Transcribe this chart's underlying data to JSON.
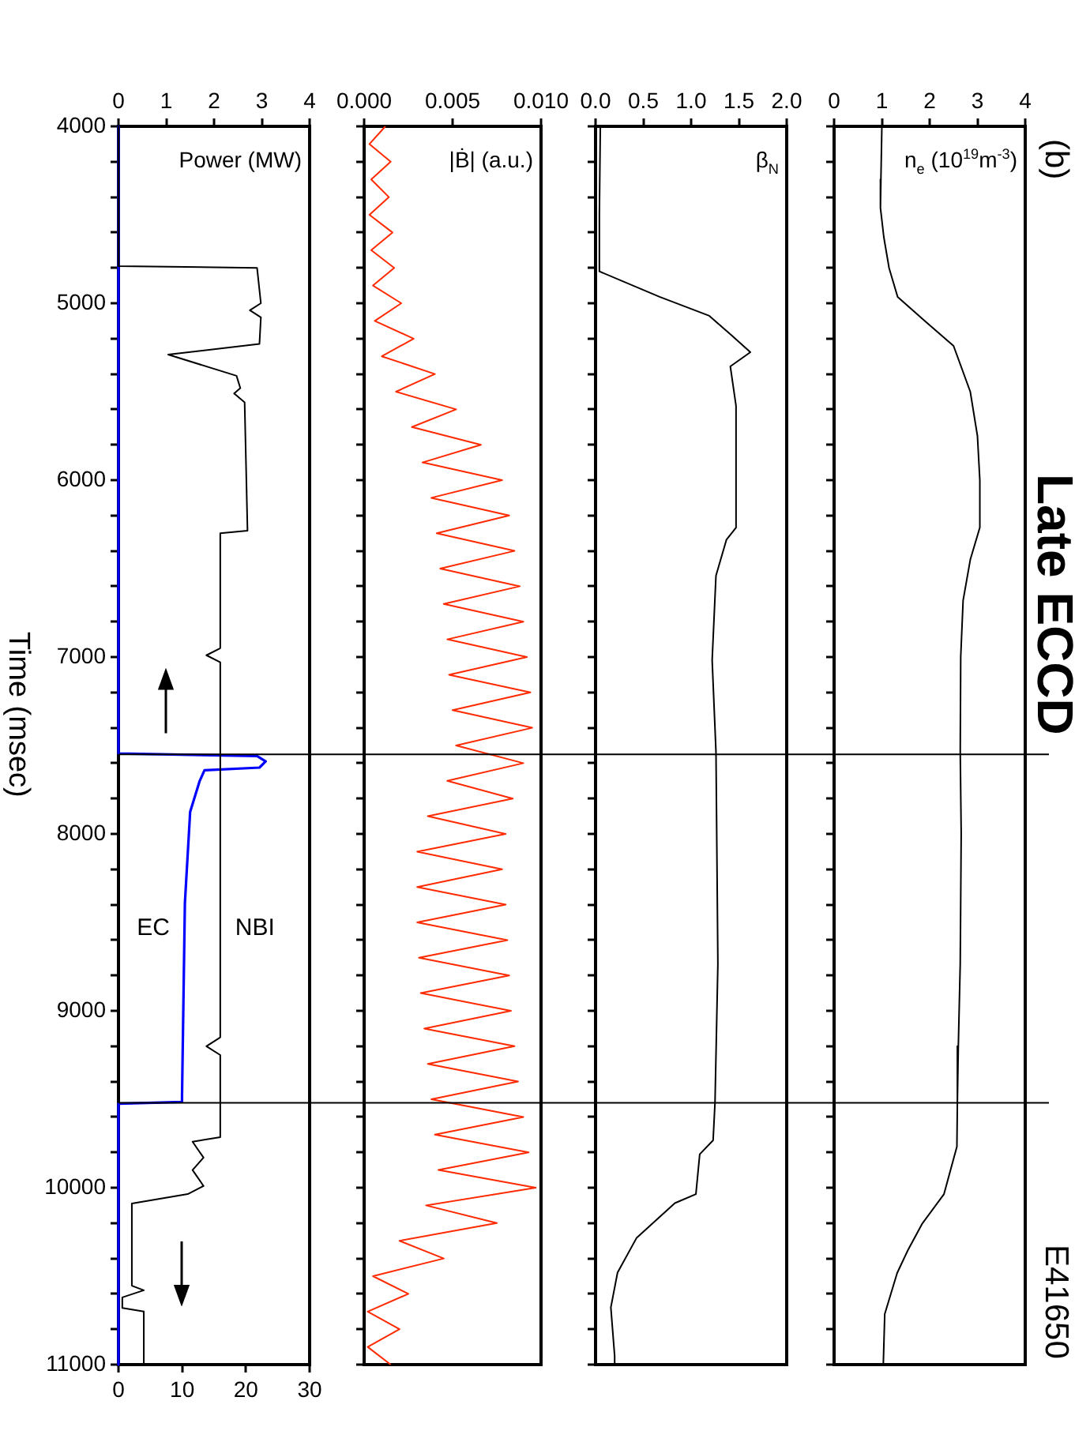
{
  "chart_data": [
    {
      "type": "line",
      "ylabel": "Power (MW)",
      "y2label": "Time (msec)",
      "ylim": [
        11000,
        4000
      ],
      "yticks": [
        4000,
        {
          "value": 4200,
          "label": null
        },
        {
          "value": 4400,
          "label": null
        },
        {
          "value": 4600,
          "label": null
        },
        {
          "value": 4800,
          "label": null
        },
        5000,
        {
          "value": 5200,
          "label": null
        },
        {
          "value": 5400,
          "label": null
        },
        {
          "value": 5600,
          "label": null
        },
        {
          "value": 5800,
          "label": null
        },
        6000,
        {
          "value": 6200,
          "label": null
        },
        {
          "value": 6400,
          "label": null
        },
        {
          "value": 6600,
          "label": null
        },
        {
          "value": 6800,
          "label": null
        },
        7000,
        {
          "value": 7200,
          "label": null
        },
        {
          "value": 7400,
          "label": null
        },
        {
          "value": 7600,
          "label": null
        },
        {
          "value": 7800,
          "label": null
        },
        8000,
        {
          "value": 8200,
          "label": null
        },
        {
          "value": 8400,
          "label": null
        },
        {
          "value": 8600,
          "label": null
        },
        {
          "value": 8800,
          "label": null
        },
        9000,
        {
          "value": 9200,
          "label": null
        },
        {
          "value": 9400,
          "label": null
        },
        {
          "value": 9600,
          "label": null
        },
        {
          "value": 9800,
          "label": null
        },
        10000,
        {
          "value": 10200,
          "label": null
        },
        {
          "value": 10400,
          "label": null
        },
        {
          "value": 10600,
          "label": null
        },
        {
          "value": 10800,
          "label": null
        },
        11000
      ],
      "xlim": [
        0,
        4
      ],
      "xticks": [
        0,
        1,
        2,
        3,
        4
      ],
      "x2lim": [
        0,
        30
      ],
      "x2ticks": [
        0,
        10,
        20,
        30
      ],
      "grid": false,
      "legend": false,
      "marker": "none",
      "ref_lines": [
        {
          "axis": "y",
          "value": 7550,
          "label": null,
          "color": "#000000"
        },
        {
          "axis": "y",
          "value": 9520,
          "label": null,
          "color": "#000000"
        }
      ],
      "series": [
        {
          "name": "NBI",
          "color": "#000000",
          "x": [
            0,
            0,
            2.9,
            2.98,
            2.75,
            2.98,
            2.95,
            1.04,
            2.47,
            2.55,
            2.42,
            2.64,
            2.7,
            2.13,
            2.13,
            1.84,
            2.13,
            2.13,
            1.84,
            2.13,
            2.13,
            1.55,
            1.78,
            1.55,
            1.78,
            1.45,
            0.28,
            0.28,
            0.53,
            0.08,
            0.08,
            0.53,
            0.53
          ],
          "values": [
            4000,
            4790,
            4800,
            5000,
            5040,
            5080,
            5230,
            5290,
            5410,
            5480,
            5510,
            5560,
            6286,
            6300,
            6950,
            6990,
            7030,
            9150,
            9200,
            9250,
            9714,
            9740,
            9830,
            9900,
            9990,
            10036,
            10089,
            10554,
            10580,
            10620,
            10680,
            10700,
            11000
          ]
        },
        {
          "name": "EC",
          "color": "#0000ff",
          "x": [
            0,
            0,
            2.9,
            3.08,
            2.95,
            1.8,
            1.7,
            1.5,
            1.39,
            1.33,
            1.33,
            0,
            0
          ],
          "values": [
            4000,
            7545,
            7560,
            7590,
            7625,
            7640,
            7700,
            7875,
            8390,
            9480,
            9515,
            9525,
            11000
          ]
        }
      ]
    },
    {
      "type": "line",
      "ylabel": "|Ḃ| (a.u.)",
      "ylim": [
        11000,
        4000
      ],
      "yticks": [
        4000,
        {
          "value": 4200,
          "label": null
        },
        {
          "value": 4400,
          "label": null
        },
        {
          "value": 4600,
          "label": null
        },
        {
          "value": 4800,
          "label": null
        },
        5000,
        {
          "value": 5200,
          "label": null
        },
        {
          "value": 5400,
          "label": null
        },
        {
          "value": 5600,
          "label": null
        },
        {
          "value": 5800,
          "label": null
        },
        6000,
        {
          "value": 6200,
          "label": null
        },
        {
          "value": 6400,
          "label": null
        },
        {
          "value": 6600,
          "label": null
        },
        {
          "value": 6800,
          "label": null
        },
        7000,
        {
          "value": 7200,
          "label": null
        },
        {
          "value": 7400,
          "label": null
        },
        {
          "value": 7600,
          "label": null
        },
        {
          "value": 7800,
          "label": null
        },
        8000,
        {
          "value": 8200,
          "label": null
        },
        {
          "value": 8400,
          "label": null
        },
        {
          "value": 8600,
          "label": null
        },
        {
          "value": 8800,
          "label": null
        },
        9000,
        {
          "value": 9200,
          "label": null
        },
        {
          "value": 9400,
          "label": null
        },
        {
          "value": 9600,
          "label": null
        },
        {
          "value": 9800,
          "label": null
        },
        10000,
        {
          "value": 10200,
          "label": null
        },
        {
          "value": 10400,
          "label": null
        },
        {
          "value": 10600,
          "label": null
        },
        {
          "value": 10800,
          "label": null
        },
        11000
      ],
      "xlim": [
        0,
        0.01
      ],
      "xticks": [
        {
          "value": 0,
          "label": "0.000"
        },
        {
          "value": 0.005,
          "label": "0.005"
        },
        {
          "value": 0.01,
          "label": "0.010"
        }
      ],
      "tick_labels": "x",
      "grid": false,
      "legend": false,
      "marker": "none",
      "ref_lines": [
        {
          "axis": "y",
          "value": 7550,
          "label": null,
          "color": "#000000"
        },
        {
          "axis": "y",
          "value": 9520,
          "label": null,
          "color": "#000000"
        }
      ],
      "series": [
        {
          "color": "#ff2a00",
          "x": [
            0.0012,
            0.0003,
            0.0015,
            0.0004,
            0.0014,
            0.0003,
            0.0016,
            0.0004,
            0.0017,
            0.0005,
            0.0021,
            0.0006,
            0.0028,
            0.001,
            0.004,
            0.0018,
            0.0052,
            0.0027,
            0.0066,
            0.0033,
            0.0078,
            0.0038,
            0.0082,
            0.0041,
            0.0085,
            0.0043,
            0.0088,
            0.0045,
            0.009,
            0.0047,
            0.0092,
            0.0048,
            0.0094,
            0.005,
            0.0095,
            0.0052,
            0.009,
            0.0047,
            0.0084,
            0.0036,
            0.008,
            0.003,
            0.0078,
            0.003,
            0.008,
            0.003,
            0.0081,
            0.0031,
            0.0082,
            0.0032,
            0.0083,
            0.0034,
            0.0085,
            0.0036,
            0.0087,
            0.0038,
            0.009,
            0.004,
            0.0093,
            0.0042,
            0.0097,
            0.0035,
            0.0075,
            0.002,
            0.0045,
            0.0005,
            0.0025,
            0.0002,
            0.002,
            0.0002,
            0.0015
          ],
          "values": [
            4000,
            4100,
            4200,
            4300,
            4400,
            4500,
            4600,
            4700,
            4800,
            4900,
            5000,
            5100,
            5200,
            5300,
            5400,
            5500,
            5600,
            5700,
            5800,
            5900,
            6000,
            6100,
            6200,
            6300,
            6400,
            6500,
            6600,
            6700,
            6800,
            6900,
            7000,
            7100,
            7200,
            7300,
            7400,
            7500,
            7600,
            7700,
            7800,
            7900,
            8000,
            8100,
            8200,
            8300,
            8400,
            8500,
            8600,
            8700,
            8800,
            8900,
            9000,
            9100,
            9200,
            9300,
            9400,
            9500,
            9600,
            9700,
            9800,
            9900,
            10000,
            10100,
            10200,
            10300,
            10400,
            10500,
            10600,
            10700,
            10800,
            10900,
            11000
          ]
        }
      ]
    },
    {
      "type": "line",
      "ylabel": "β$_{N}$",
      "ylim": [
        11000,
        4000
      ],
      "yticks": [
        4000,
        {
          "value": 4200,
          "label": null
        },
        {
          "value": 4400,
          "label": null
        },
        {
          "value": 4600,
          "label": null
        },
        {
          "value": 4800,
          "label": null
        },
        5000,
        {
          "value": 5200,
          "label": null
        },
        {
          "value": 5400,
          "label": null
        },
        {
          "value": 5600,
          "label": null
        },
        {
          "value": 5800,
          "label": null
        },
        6000,
        {
          "value": 6200,
          "label": null
        },
        {
          "value": 6400,
          "label": null
        },
        {
          "value": 6600,
          "label": null
        },
        {
          "value": 6800,
          "label": null
        },
        7000,
        {
          "value": 7200,
          "label": null
        },
        {
          "value": 7400,
          "label": null
        },
        {
          "value": 7600,
          "label": null
        },
        {
          "value": 7800,
          "label": null
        },
        8000,
        {
          "value": 8200,
          "label": null
        },
        {
          "value": 8400,
          "label": null
        },
        {
          "value": 8600,
          "label": null
        },
        {
          "value": 8800,
          "label": null
        },
        9000,
        {
          "value": 9200,
          "label": null
        },
        {
          "value": 9400,
          "label": null
        },
        {
          "value": 9600,
          "label": null
        },
        {
          "value": 9800,
          "label": null
        },
        10000,
        {
          "value": 10200,
          "label": null
        },
        {
          "value": 10400,
          "label": null
        },
        {
          "value": 10600,
          "label": null
        },
        {
          "value": 10800,
          "label": null
        },
        11000
      ],
      "xlim": [
        0,
        2
      ],
      "xticks": [
        {
          "value": 0,
          "label": "0.0"
        },
        {
          "value": 0.5,
          "label": "0.5"
        },
        {
          "value": 1,
          "label": "1.0"
        },
        {
          "value": 1.5,
          "label": "1.5"
        },
        {
          "value": 2,
          "label": "2.0"
        }
      ],
      "tick_labels": "x",
      "grid": false,
      "legend": false,
      "marker": "none",
      "ref_lines": [
        {
          "axis": "y",
          "value": 7550,
          "label": null,
          "color": "#000000"
        },
        {
          "axis": "y",
          "value": 9520,
          "label": null,
          "color": "#000000"
        }
      ],
      "series": [
        {
          "color": "#000000",
          "x": [
            0.05,
            0.04,
            0.04,
            0.67,
            1.19,
            1.42,
            1.62,
            1.41,
            1.47,
            1.47,
            1.37,
            1.26,
            1.22,
            1.26,
            1.28,
            1.25,
            1.23,
            1.09,
            1.05,
            0.83,
            0.43,
            0.23,
            0.16,
            0.2,
            0.2
          ],
          "values": [
            4000,
            4500,
            4820,
            4964,
            5071,
            5180,
            5277,
            5357,
            5580,
            6268,
            6336,
            6540,
            7018,
            7533,
            8732,
            9518,
            9732,
            9811,
            10036,
            10087,
            10283,
            10480,
            10677,
            10952,
            11000
          ]
        }
      ]
    },
    {
      "type": "line",
      "title": "Late ECCD",
      "annotations": [
        "(b)",
        "E41650"
      ],
      "ylabel": "n$_{e}$ (10$^{19}$m$^{-3}$)",
      "ylim": [
        11000,
        4000
      ],
      "yticks": [
        4000,
        {
          "value": 4200,
          "label": null
        },
        {
          "value": 4400,
          "label": null
        },
        {
          "value": 4600,
          "label": null
        },
        {
          "value": 4800,
          "label": null
        },
        5000,
        {
          "value": 5200,
          "label": null
        },
        {
          "value": 5400,
          "label": null
        },
        {
          "value": 5600,
          "label": null
        },
        {
          "value": 5800,
          "label": null
        },
        6000,
        {
          "value": 6200,
          "label": null
        },
        {
          "value": 6400,
          "label": null
        },
        {
          "value": 6600,
          "label": null
        },
        {
          "value": 6800,
          "label": null
        },
        7000,
        {
          "value": 7200,
          "label": null
        },
        {
          "value": 7400,
          "label": null
        },
        {
          "value": 7600,
          "label": null
        },
        {
          "value": 7800,
          "label": null
        },
        8000,
        {
          "value": 8200,
          "label": null
        },
        {
          "value": 8400,
          "label": null
        },
        {
          "value": 8600,
          "label": null
        },
        {
          "value": 8800,
          "label": null
        },
        9000,
        {
          "value": 9200,
          "label": null
        },
        {
          "value": 9400,
          "label": null
        },
        {
          "value": 9600,
          "label": null
        },
        {
          "value": 9800,
          "label": null
        },
        10000,
        {
          "value": 10200,
          "label": null
        },
        {
          "value": 10400,
          "label": null
        },
        {
          "value": 10600,
          "label": null
        },
        {
          "value": 10800,
          "label": null
        },
        11000
      ],
      "xlim": [
        0,
        4
      ],
      "xticks": [
        0,
        1,
        2,
        3,
        4
      ],
      "tick_labels": "x",
      "grid": false,
      "legend": false,
      "marker": "none",
      "ref_lines": [
        {
          "axis": "y",
          "value": 7550,
          "label": null,
          "color": "#000000"
        },
        {
          "axis": "y",
          "value": 9520,
          "label": null,
          "color": "#000000"
        }
      ],
      "series": [
        {
          "color": "#000000",
          "x": [
            1.0,
            0.98,
            0.97,
            1.04,
            1.15,
            1.33,
            1.9,
            2.5,
            2.85,
            3.0,
            3.05,
            3.05,
            2.85,
            2.7,
            2.65,
            2.64,
            2.66,
            2.64,
            2.6,
            2.58,
            2.57,
            2.3,
            1.84,
            1.55,
            1.32,
            1.06,
            1.03
          ],
          "values": [
            4000,
            4300,
            4460,
            4625,
            4800,
            4964,
            5100,
            5241,
            5500,
            5750,
            6000,
            6268,
            6450,
            6680,
            7000,
            7536,
            8000,
            8732,
            9200,
            9518,
            9768,
            10036,
            10205,
            10350,
            10482,
            10714,
            11000
          ]
        }
      ]
    }
  ]
}
